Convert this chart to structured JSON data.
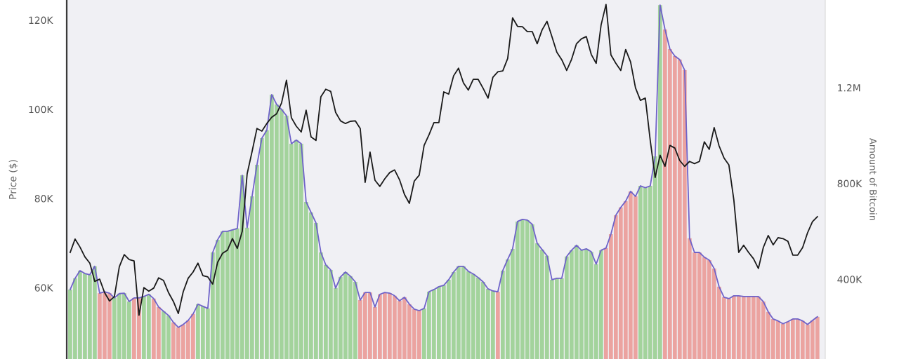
{
  "chart_data": {
    "type": "bar",
    "categories": [
      null,
      null,
      null,
      null,
      null,
      null,
      null,
      null,
      null,
      null,
      null,
      null,
      null,
      null,
      null,
      null,
      null,
      null,
      null,
      null,
      null,
      null,
      null,
      null,
      null,
      null,
      null,
      null,
      null,
      null,
      null,
      null,
      null,
      null,
      null,
      null,
      null,
      null,
      null,
      null,
      null,
      null,
      null,
      null,
      null,
      null,
      null,
      null,
      null,
      null,
      null,
      null,
      null,
      null,
      null,
      null,
      null,
      null,
      null,
      null,
      null,
      null,
      null,
      null,
      null,
      null,
      null,
      null,
      null,
      null,
      null,
      null,
      null,
      null,
      null,
      null,
      null,
      null,
      null,
      null,
      null,
      null,
      null,
      null,
      null,
      null,
      null,
      null,
      null,
      null,
      null,
      null,
      null,
      null,
      null,
      null,
      null,
      null,
      null,
      null,
      null,
      null,
      null,
      null,
      null,
      null,
      null,
      null,
      null,
      null,
      null,
      null,
      null,
      null,
      null,
      null,
      null,
      null,
      null,
      null,
      null,
      null,
      null,
      null,
      null,
      null,
      null,
      null,
      null,
      null,
      null,
      null,
      null,
      null,
      null,
      null,
      null,
      null,
      null,
      null,
      null,
      null,
      null,
      null,
      null,
      null,
      null,
      null,
      null,
      null,
      null,
      null,
      null
    ],
    "ylabel": "Price ($)",
    "y2label": "Amount of Bitcoin",
    "ylim": [
      44000,
      124500
    ],
    "yticks": [
      {
        "value": 60000,
        "label": "60K"
      },
      {
        "value": 80000,
        "label": "80K"
      },
      {
        "value": 100000,
        "label": "100K"
      },
      {
        "value": 120000,
        "label": "120K"
      }
    ],
    "y2lim": [
      67000,
      1566000
    ],
    "y2ticks": [
      {
        "value": 400000,
        "label": "400K"
      },
      {
        "value": 800000,
        "label": "800K"
      },
      {
        "value": 1200000,
        "label": "1.2M"
      }
    ],
    "tick_labels": "y",
    "grid": false,
    "series": [
      {
        "axis": "y2",
        "colors": [
          "#a3d39c",
          "#a3d39c",
          "#a3d39c",
          "#a3d39c",
          "#a3d39c",
          "#a3d39c",
          "#eba3a0",
          "#eba3a0",
          "#eba3a0",
          "#a3d39c",
          "#a3d39c",
          "#a3d39c",
          "#a3d39c",
          "#eba3a0",
          "#eba3a0",
          "#a3d39c",
          "#a3d39c",
          "#eba3a0",
          "#eba3a0",
          "#a3d39c",
          "#a3d39c",
          "#eba3a0",
          "#eba3a0",
          "#eba3a0",
          "#eba3a0",
          "#eba3a0",
          "#a3d39c",
          "#a3d39c",
          "#a3d39c",
          "#a3d39c",
          "#a3d39c",
          "#a3d39c",
          "#a3d39c",
          "#a3d39c",
          "#a3d39c",
          "#a3d39c",
          "#a3d39c",
          "#a3d39c",
          "#a3d39c",
          "#a3d39c",
          "#a3d39c",
          "#a3d39c",
          "#a3d39c",
          "#a3d39c",
          "#a3d39c",
          "#a3d39c",
          "#a3d39c",
          "#a3d39c",
          "#a3d39c",
          "#a3d39c",
          "#a3d39c",
          "#a3d39c",
          "#a3d39c",
          "#a3d39c",
          "#a3d39c",
          "#a3d39c",
          "#a3d39c",
          "#a3d39c",
          "#a3d39c",
          "#eba3a0",
          "#eba3a0",
          "#eba3a0",
          "#eba3a0",
          "#eba3a0",
          "#eba3a0",
          "#eba3a0",
          "#eba3a0",
          "#eba3a0",
          "#eba3a0",
          "#eba3a0",
          "#eba3a0",
          "#eba3a0",
          "#a3d39c",
          "#a3d39c",
          "#a3d39c",
          "#a3d39c",
          "#a3d39c",
          "#a3d39c",
          "#a3d39c",
          "#a3d39c",
          "#a3d39c",
          "#a3d39c",
          "#a3d39c",
          "#a3d39c",
          "#a3d39c",
          "#a3d39c",
          "#a3d39c",
          "#eba3a0",
          "#a3d39c",
          "#a3d39c",
          "#a3d39c",
          "#a3d39c",
          "#a3d39c",
          "#a3d39c",
          "#a3d39c",
          "#a3d39c",
          "#a3d39c",
          "#a3d39c",
          "#a3d39c",
          "#a3d39c",
          "#a3d39c",
          "#a3d39c",
          "#a3d39c",
          "#a3d39c",
          "#a3d39c",
          "#a3d39c",
          "#a3d39c",
          "#a3d39c",
          "#a3d39c",
          "#eba3a0",
          "#eba3a0",
          "#eba3a0",
          "#eba3a0",
          "#eba3a0",
          "#eba3a0",
          "#eba3a0",
          "#a3d39c",
          "#a3d39c",
          "#a3d39c",
          "#a3d39c",
          "#a3d39c",
          "#eba3a0",
          "#eba3a0",
          "#eba3a0",
          "#eba3a0",
          "#eba3a0",
          "#eba3a0",
          "#eba3a0",
          "#eba3a0",
          "#eba3a0",
          "#eba3a0",
          "#eba3a0",
          "#eba3a0",
          "#eba3a0",
          "#eba3a0",
          "#eba3a0",
          "#eba3a0",
          "#eba3a0",
          "#eba3a0",
          "#eba3a0",
          "#eba3a0",
          "#eba3a0",
          "#eba3a0",
          "#eba3a0",
          "#eba3a0",
          "#eba3a0",
          "#eba3a0",
          "#eba3a0",
          "#eba3a0",
          "#eba3a0",
          "#eba3a0",
          "#eba3a0",
          "#eba3a0"
        ],
        "values": [
          357000,
          404000,
          436000,
          424000,
          419000,
          454000,
          342000,
          348000,
          342000,
          322000,
          340000,
          342000,
          307000,
          322000,
          322000,
          328000,
          337000,
          319000,
          284000,
          266000,
          249000,
          220000,
          199000,
          211000,
          228000,
          255000,
          296000,
          287000,
          278000,
          512000,
          565000,
          600000,
          600000,
          606000,
          612000,
          834000,
          615000,
          746000,
          878000,
          989000,
          1022000,
          1171000,
          1130000,
          1109000,
          1083000,
          966000,
          981000,
          966000,
          723000,
          679000,
          635000,
          512000,
          460000,
          439000,
          363000,
          410000,
          430000,
          413000,
          389000,
          313000,
          345000,
          345000,
          284000,
          337000,
          345000,
          342000,
          331000,
          310000,
          325000,
          296000,
          275000,
          269000,
          278000,
          348000,
          357000,
          369000,
          375000,
          398000,
          430000,
          454000,
          454000,
          433000,
          422000,
          407000,
          389000,
          360000,
          351000,
          348000,
          436000,
          483000,
          527000,
          641000,
          650000,
          647000,
          629000,
          550000,
          524000,
          498000,
          398000,
          404000,
          404000,
          495000,
          521000,
          542000,
          521000,
          527000,
          515000,
          463000,
          521000,
          530000,
          588000,
          667000,
          700000,
          726000,
          767000,
          746000,
          790000,
          782000,
          790000,
          913000,
          1545000,
          1443000,
          1361000,
          1332000,
          1317000,
          1273000,
          571000,
          512000,
          512000,
          492000,
          480000,
          445000,
          369000,
          325000,
          319000,
          331000,
          331000,
          328000,
          328000,
          328000,
          328000,
          307000,
          264000,
          234000,
          226000,
          214000,
          223000,
          234000,
          234000,
          226000,
          211000,
          228000,
          243000
        ]
      },
      {
        "type": "line",
        "axis": "y2",
        "color": "#6f63c9",
        "values": [
          357000,
          404000,
          436000,
          424000,
          419000,
          454000,
          342000,
          348000,
          342000,
          322000,
          340000,
          342000,
          307000,
          322000,
          322000,
          328000,
          337000,
          319000,
          284000,
          266000,
          249000,
          220000,
          199000,
          211000,
          228000,
          255000,
          296000,
          287000,
          278000,
          512000,
          565000,
          600000,
          600000,
          606000,
          612000,
          834000,
          615000,
          746000,
          878000,
          989000,
          1022000,
          1171000,
          1130000,
          1109000,
          1083000,
          966000,
          981000,
          966000,
          723000,
          679000,
          635000,
          512000,
          460000,
          439000,
          363000,
          410000,
          430000,
          413000,
          389000,
          313000,
          345000,
          345000,
          284000,
          337000,
          345000,
          342000,
          331000,
          310000,
          325000,
          296000,
          275000,
          269000,
          278000,
          348000,
          357000,
          369000,
          375000,
          398000,
          430000,
          454000,
          454000,
          433000,
          422000,
          407000,
          389000,
          360000,
          351000,
          348000,
          436000,
          483000,
          527000,
          641000,
          650000,
          647000,
          629000,
          550000,
          524000,
          498000,
          398000,
          404000,
          404000,
          495000,
          521000,
          542000,
          521000,
          527000,
          515000,
          463000,
          521000,
          530000,
          588000,
          667000,
          700000,
          726000,
          767000,
          746000,
          790000,
          782000,
          790000,
          913000,
          1545000,
          1443000,
          1361000,
          1332000,
          1317000,
          1273000,
          571000,
          512000,
          512000,
          492000,
          480000,
          445000,
          369000,
          325000,
          319000,
          331000,
          331000,
          328000,
          328000,
          328000,
          328000,
          307000,
          264000,
          234000,
          226000,
          214000,
          223000,
          234000,
          234000,
          226000,
          211000,
          228000,
          243000
        ]
      },
      {
        "type": "line",
        "axis": "y",
        "color": "#1a1a1a",
        "values": [
          67900,
          70900,
          69100,
          66900,
          65500,
          61400,
          61900,
          58900,
          57000,
          58000,
          64700,
          67400,
          66300,
          66000,
          53800,
          60000,
          59200,
          59900,
          62200,
          61600,
          58900,
          56900,
          54200,
          59100,
          62100,
          63500,
          65500,
          62700,
          62400,
          60800,
          65700,
          67700,
          68400,
          71000,
          68800,
          72600,
          85500,
          90500,
          95700,
          95100,
          96800,
          98200,
          99000,
          101400,
          106500,
          98100,
          96200,
          94900,
          99800,
          93800,
          93000,
          102800,
          104500,
          104000,
          99300,
          97400,
          96800,
          97300,
          97400,
          95700,
          83600,
          90400,
          84100,
          82700,
          84400,
          85800,
          86400,
          84200,
          80900,
          78900,
          83900,
          85200,
          91900,
          94300,
          97000,
          97000,
          103900,
          103400,
          107500,
          109200,
          105900,
          104300,
          106700,
          106700,
          104700,
          102500,
          107200,
          108400,
          108600,
          111400,
          120500,
          118600,
          118500,
          117400,
          117400,
          114700,
          117800,
          119700,
          116300,
          112800,
          111100,
          108700,
          111200,
          114700,
          115800,
          116300,
          112300,
          110300,
          118900,
          123500,
          112200,
          110300,
          108700,
          113400,
          110600,
          104800,
          102000,
          102500,
          93000,
          84700,
          89700,
          87200,
          91900,
          91300,
          88500,
          87200,
          88300,
          87800,
          88300,
          92700,
          91000,
          95900,
          91800,
          89100,
          87500,
          79700,
          67900,
          69500,
          67900,
          66500,
          64300,
          69000,
          71700,
          69600,
          71200,
          71000,
          70400,
          67300,
          67300,
          69000,
          72300,
          74800,
          75900
        ]
      }
    ]
  }
}
